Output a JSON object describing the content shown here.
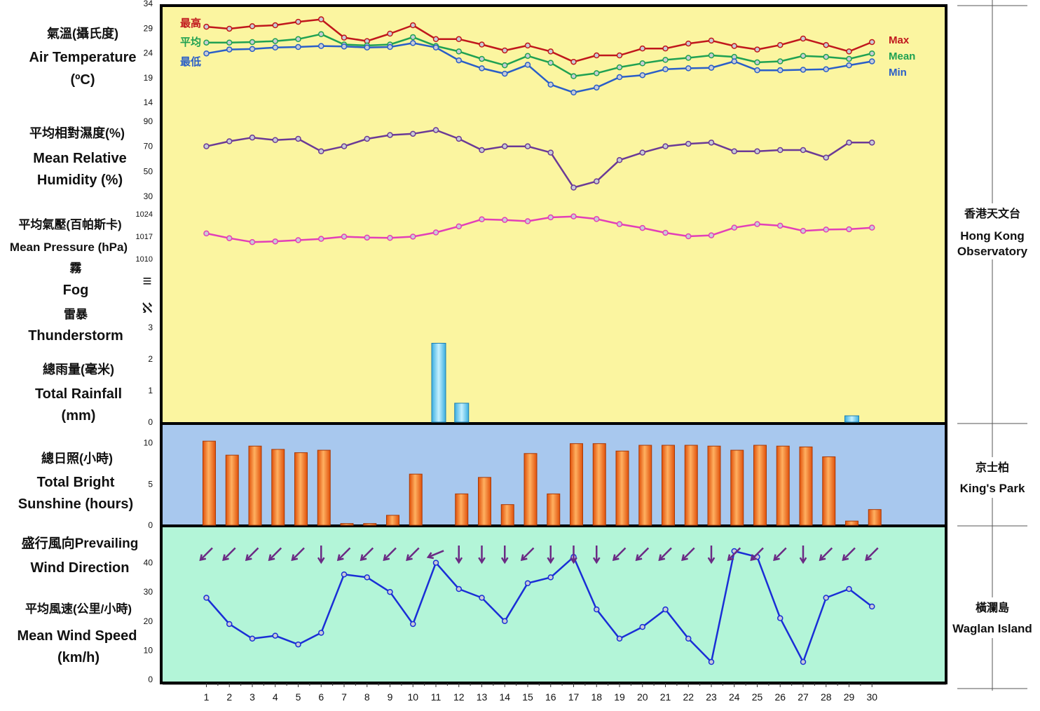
{
  "colors": {
    "panel_top": "#fbf5a0",
    "panel_mid": "#a8c8ee",
    "panel_bottom": "#b3f5d8",
    "max": "#c0171c",
    "mean": "#1fa152",
    "min": "#2a5ec8",
    "humidity": "#6b3a96",
    "pressure": "#e23fb8",
    "rainfall": "#4fc2ec",
    "sunshine": "#f06a12",
    "wind_arrow": "#6b2a84",
    "wind_speed": "#1a2ed6"
  },
  "labels": {
    "temperature": [
      "氣溫(攝氏度)",
      "Air Temperature",
      "(ºC)"
    ],
    "humidity": [
      "平均相對濕度(%)",
      "Mean Relative",
      "Humidity (%)"
    ],
    "pressure": [
      "平均氣壓(百帕斯卡)",
      "Mean Pressure (hPa)"
    ],
    "fog": [
      "霧",
      "Fog"
    ],
    "thunderstorm": [
      "雷暴",
      "Thunderstorm"
    ],
    "rainfall": [
      "總雨量(毫米)",
      "Total Rainfall",
      "(mm)"
    ],
    "sunshine": [
      "總日照(小時)",
      "Total Bright",
      "Sunshine (hours)"
    ],
    "wind_direction": [
      "盛行風向Prevailing",
      "Wind Direction"
    ],
    "wind_speed": [
      "平均風速(公里/小時)",
      "Mean Wind Speed",
      "(km/h)"
    ]
  },
  "legend": {
    "zh": [
      "最高",
      "平均",
      "最低"
    ],
    "en": [
      "Max",
      "Mean",
      "Min"
    ]
  },
  "stations": {
    "hko": [
      "香港天文台",
      "Hong Kong",
      "Observatory"
    ],
    "kp": [
      "京士柏",
      "King's Park"
    ],
    "waglan": [
      "橫瀾島",
      "Waglan Island"
    ]
  },
  "symbols": {
    "fog": "≡",
    "thunderstorm": "ℵ"
  },
  "chart_data": [
    {
      "type": "line",
      "x": [
        1,
        2,
        3,
        4,
        5,
        6,
        7,
        8,
        9,
        10,
        11,
        12,
        13,
        14,
        15,
        16,
        17,
        18,
        19,
        20,
        21,
        22,
        23,
        24,
        25,
        26,
        27,
        28,
        29,
        30
      ],
      "ylim": [
        14,
        34
      ],
      "yticks": [
        14,
        19,
        24,
        29,
        34
      ],
      "series": [
        {
          "name": "Max",
          "values": [
            29.3,
            28.9,
            29.4,
            29.6,
            30.3,
            30.8,
            27.1,
            26.4,
            27.9,
            29.6,
            26.8,
            26.8,
            25.7,
            24.5,
            25.5,
            24.3,
            22.2,
            23.5,
            23.5,
            24.9,
            24.9,
            25.9,
            26.5,
            25.4,
            24.7,
            25.6,
            26.9,
            25.6,
            24.3,
            26.2
          ]
        },
        {
          "name": "Mean",
          "values": [
            26.1,
            26.1,
            26.2,
            26.4,
            26.8,
            27.8,
            25.7,
            25.5,
            25.7,
            27.2,
            25.4,
            24.3,
            22.8,
            21.5,
            23.4,
            22.0,
            19.3,
            19.9,
            21.1,
            21.9,
            22.6,
            23.0,
            23.5,
            23.2,
            22.1,
            22.3,
            23.4,
            23.2,
            22.8,
            23.9
          ]
        },
        {
          "name": "Min",
          "values": [
            23.9,
            24.7,
            24.8,
            25.1,
            25.2,
            25.4,
            25.3,
            25.1,
            25.2,
            26.0,
            25.1,
            22.5,
            20.9,
            19.8,
            21.6,
            17.6,
            16.0,
            17.0,
            19.1,
            19.5,
            20.7,
            20.9,
            21.0,
            22.3,
            20.5,
            20.5,
            20.6,
            20.7,
            21.5,
            22.3
          ]
        }
      ]
    },
    {
      "type": "line",
      "x": [
        1,
        2,
        3,
        4,
        5,
        6,
        7,
        8,
        9,
        10,
        11,
        12,
        13,
        14,
        15,
        16,
        17,
        18,
        19,
        20,
        21,
        22,
        23,
        24,
        25,
        26,
        27,
        28,
        29,
        30
      ],
      "ylim": [
        30,
        90
      ],
      "yticks": [
        30,
        50,
        70,
        90
      ],
      "series": [
        {
          "name": "",
          "values": [
            70,
            74,
            77,
            75,
            76,
            66,
            70,
            76,
            79,
            80,
            83,
            76,
            67,
            70,
            70,
            65,
            37,
            42,
            59,
            65,
            70,
            72,
            73,
            66,
            66,
            67,
            67,
            61,
            73,
            73
          ]
        }
      ]
    },
    {
      "type": "line",
      "x": [
        1,
        2,
        3,
        4,
        5,
        6,
        7,
        8,
        9,
        10,
        11,
        12,
        13,
        14,
        15,
        16,
        17,
        18,
        19,
        20,
        21,
        22,
        23,
        24,
        25,
        26,
        27,
        28,
        29,
        30
      ],
      "ylim": [
        1010,
        1024
      ],
      "yticks": [
        1010,
        1017,
        1024
      ],
      "series": [
        {
          "name": "",
          "values": [
            1017.9,
            1016.4,
            1015.2,
            1015.4,
            1015.8,
            1016.2,
            1016.9,
            1016.6,
            1016.5,
            1016.9,
            1018.2,
            1020.1,
            1022.3,
            1022.1,
            1021.7,
            1022.9,
            1023.2,
            1022.4,
            1020.8,
            1019.6,
            1018.1,
            1017.0,
            1017.3,
            1019.7,
            1020.8,
            1020.3,
            1018.7,
            1019.1,
            1019.2,
            1019.7
          ]
        }
      ]
    },
    {
      "type": "bar",
      "categories": [
        1,
        2,
        3,
        4,
        5,
        6,
        7,
        8,
        9,
        10,
        11,
        12,
        13,
        14,
        15,
        16,
        17,
        18,
        19,
        20,
        21,
        22,
        23,
        24,
        25,
        26,
        27,
        28,
        29,
        30
      ],
      "values": [
        0,
        0,
        0,
        0,
        0,
        0,
        0,
        0,
        0,
        0,
        2.5,
        0.6,
        0,
        0,
        0,
        0,
        0,
        0,
        0,
        0,
        0,
        0,
        0,
        0,
        0,
        0,
        0,
        0,
        0.2,
        0
      ],
      "ylim": [
        0,
        3
      ],
      "yticks": [
        0,
        1,
        2,
        3
      ]
    },
    {
      "type": "bar",
      "categories": [
        1,
        2,
        3,
        4,
        5,
        6,
        7,
        8,
        9,
        10,
        11,
        12,
        13,
        14,
        15,
        16,
        17,
        18,
        19,
        20,
        21,
        22,
        23,
        24,
        25,
        26,
        27,
        28,
        29,
        30
      ],
      "values": [
        10.2,
        8.5,
        9.6,
        9.2,
        8.8,
        9.1,
        0.2,
        0.2,
        1.2,
        6.2,
        0,
        3.8,
        5.8,
        2.5,
        8.7,
        3.8,
        9.9,
        9.9,
        9.0,
        9.7,
        9.7,
        9.7,
        9.6,
        9.1,
        9.7,
        9.6,
        9.5,
        8.3,
        0.5,
        1.9
      ],
      "ylim": [
        0,
        12
      ],
      "yticks": [
        0,
        5,
        10
      ]
    },
    {
      "type": "line",
      "x": [
        1,
        2,
        3,
        4,
        5,
        6,
        7,
        8,
        9,
        10,
        11,
        12,
        13,
        14,
        15,
        16,
        17,
        18,
        19,
        20,
        21,
        22,
        23,
        24,
        25,
        26,
        27,
        28,
        29,
        30
      ],
      "ylim": [
        0,
        50
      ],
      "yticks": [
        0,
        10,
        20,
        30,
        40
      ],
      "series": [
        {
          "name": "",
          "values": [
            28,
            19,
            14,
            15,
            12,
            16,
            36,
            35,
            30,
            19,
            40,
            31,
            28,
            20,
            33,
            35,
            42,
            24,
            14,
            18,
            24,
            14,
            6,
            44,
            42,
            21,
            6,
            28,
            31,
            25
          ]
        }
      ]
    }
  ],
  "wind_directions": [
    "NE",
    "NE",
    "NE",
    "NE",
    "NE",
    "N",
    "NE",
    "NE",
    "NE",
    "NE",
    "ENE",
    "N",
    "N",
    "N",
    "NE",
    "N",
    "N",
    "N",
    "NE",
    "NE",
    "NE",
    "NE",
    "N",
    "NE",
    "NE",
    "NE",
    "N",
    "NE",
    "NE",
    "NE"
  ],
  "xaxis_labels": [
    "1",
    "2",
    "3",
    "4",
    "5",
    "6",
    "7",
    "8",
    "9",
    "10",
    "11",
    "12",
    "13",
    "14",
    "15",
    "16",
    "17",
    "18",
    "19",
    "20",
    "21",
    "22",
    "23",
    "24",
    "25",
    "26",
    "27",
    "28",
    "29",
    "30"
  ]
}
